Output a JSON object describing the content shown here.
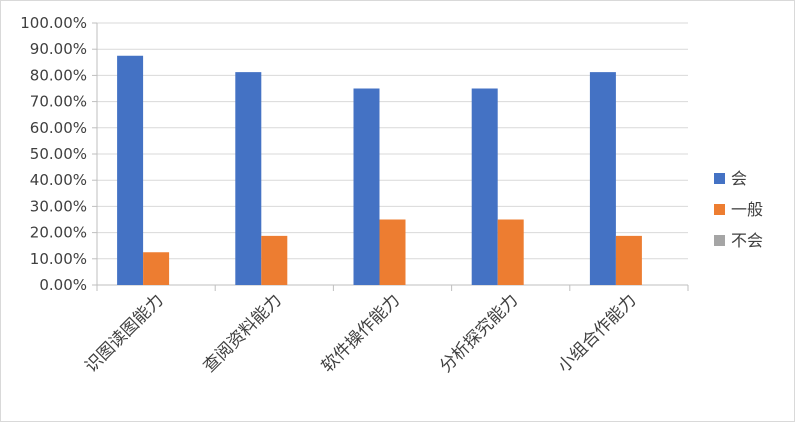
{
  "chart_data": {
    "type": "bar",
    "title": "",
    "xlabel": "",
    "ylabel": "",
    "ylim": [
      0,
      100
    ],
    "y_tick_step": 10,
    "y_tick_format": "percent_2dp",
    "grid": true,
    "legend_position": "right",
    "categories": [
      "识图读图能力",
      "查阅资料能力",
      "软件操作能力",
      "分析探究能力",
      "小组合作能力"
    ],
    "series": [
      {
        "name": "会",
        "color": "#4472c4",
        "values": [
          87.5,
          81.25,
          75.0,
          75.0,
          81.25
        ]
      },
      {
        "name": "一般",
        "color": "#ed7d31",
        "values": [
          12.5,
          18.75,
          25.0,
          25.0,
          18.75
        ]
      },
      {
        "name": "不会",
        "color": "#a5a5a5",
        "values": [
          0,
          0,
          0,
          0,
          0
        ]
      }
    ]
  }
}
